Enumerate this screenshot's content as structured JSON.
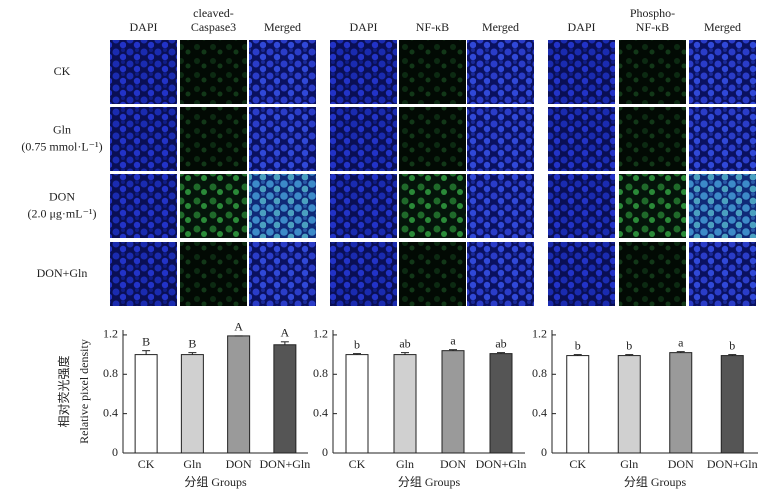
{
  "column_headers": [
    [
      [
        "DAPI"
      ],
      [
        "cleaved-",
        "Caspase3"
      ],
      [
        "Merged"
      ]
    ],
    [
      [
        "DAPI"
      ],
      [
        "NF-κB"
      ],
      [
        "Merged"
      ]
    ],
    [
      [
        "DAPI"
      ],
      [
        "Phospho-",
        "NF-κB"
      ],
      [
        "Merged"
      ]
    ]
  ],
  "row_labels": [
    [
      "CK"
    ],
    [
      "Gln",
      "(0.75 mmol·L⁻¹)"
    ],
    [
      "DON",
      "(2.0 μg·mL⁻¹)"
    ],
    [
      "DON+Gln"
    ]
  ],
  "chart_data": [
    {
      "type": "bar",
      "ylabel_zh": "相对荧光强度",
      "ylabel": "Relative pixel density",
      "xlabel": "分组 Groups",
      "categories": [
        "CK",
        "Gln",
        "DON",
        "DON+Gln"
      ],
      "values": [
        1.0,
        1.0,
        1.19,
        1.1
      ],
      "errors": [
        0.04,
        0.02,
        0.0,
        0.03
      ],
      "annotations": [
        "B",
        "B",
        "A",
        "A"
      ],
      "colors": [
        "#ffffff",
        "#d0d0d0",
        "#9a9a9a",
        "#555555"
      ],
      "ylim": [
        0,
        1.25
      ],
      "yticks": [
        0,
        0.4,
        0.8,
        1.2
      ]
    },
    {
      "type": "bar",
      "xlabel": "分组 Groups",
      "categories": [
        "CK",
        "Gln",
        "DON",
        "DON+Gln"
      ],
      "values": [
        1.0,
        1.0,
        1.04,
        1.01
      ],
      "errors": [
        0.01,
        0.02,
        0.01,
        0.01
      ],
      "annotations": [
        "b",
        "ab",
        "a",
        "ab"
      ],
      "colors": [
        "#ffffff",
        "#d0d0d0",
        "#9a9a9a",
        "#555555"
      ],
      "ylim": [
        0,
        1.25
      ],
      "yticks": [
        0,
        0.4,
        0.8,
        1.2
      ]
    },
    {
      "type": "bar",
      "xlabel": "分组 Groups",
      "categories": [
        "CK",
        "Gln",
        "DON",
        "DON+Gln"
      ],
      "values": [
        0.99,
        0.99,
        1.02,
        0.99
      ],
      "errors": [
        0.01,
        0.01,
        0.01,
        0.01
      ],
      "annotations": [
        "b",
        "b",
        "a",
        "b"
      ],
      "colors": [
        "#ffffff",
        "#d0d0d0",
        "#9a9a9a",
        "#555555"
      ],
      "ylim": [
        0,
        1.25
      ],
      "yticks": [
        0,
        0.4,
        0.8,
        1.2
      ]
    }
  ]
}
